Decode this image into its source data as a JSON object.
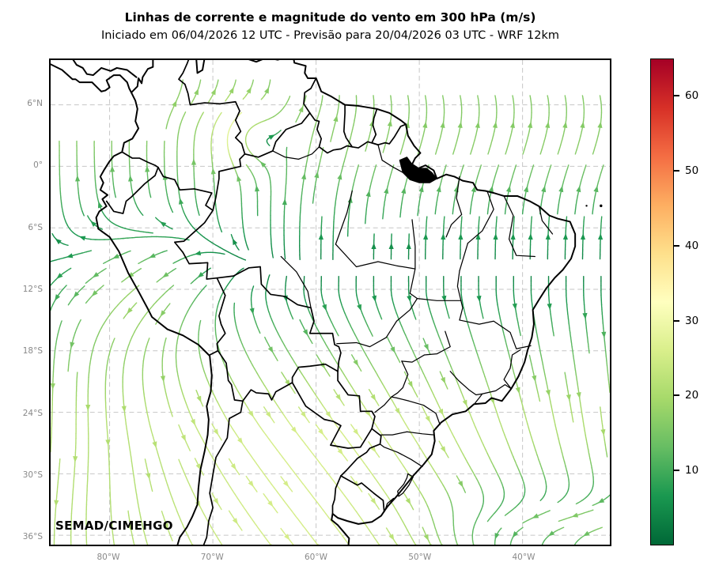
{
  "header": {
    "title": "Linhas de corrente e magnitude do vento em 300 hPa (m/s)",
    "subtitle": "Iniciado em 06/04/2026 12 UTC - Previsão para 20/04/2026 03 UTC - WRF 12km"
  },
  "map": {
    "credit": "SEMAD/CIMEHGO",
    "x_axis": {
      "tick_labels": [
        "80°W",
        "70°W",
        "60°W",
        "50°W",
        "40°W"
      ],
      "tick_lons": [
        -80,
        -70,
        -60,
        -50,
        -40
      ]
    },
    "y_axis": {
      "tick_labels": [
        "6°N",
        "0°",
        "6°S",
        "12°S",
        "18°S",
        "24°S",
        "30°S",
        "36°S"
      ],
      "tick_lats": [
        6,
        0,
        -6,
        -12,
        -18,
        -24,
        -30,
        -36
      ]
    },
    "gridline_style": "dashed"
  },
  "colorbar": {
    "unit": "m/s",
    "vmin": 0,
    "vmax": 65,
    "tick_values": [
      10,
      20,
      30,
      40,
      50,
      60
    ],
    "tick_labels": [
      "10",
      "20",
      "30",
      "40",
      "50",
      "60"
    ],
    "colormap": "RdYlGn_r",
    "anchor_colors": [
      "#006837",
      "#1a9850",
      "#66bd63",
      "#a6d96a",
      "#d9ef8b",
      "#ffffbf",
      "#fee08b",
      "#fdae61",
      "#f46d43",
      "#d73027",
      "#a50026"
    ]
  },
  "chart_data": {
    "type": "streamline_map",
    "title": "Linhas de corrente e magnitude do vento em 300 hPa (m/s)",
    "model_initialized": "06/04/2026 12 UTC",
    "forecast_valid": "20/04/2026 03 UTC",
    "model": "WRF 12km",
    "region": "South America / Brazil",
    "lon_range_deg": [
      -85.7,
      -31.5
    ],
    "lat_range_deg": [
      -37.0,
      10.4
    ],
    "wind_speed_scale_mps": {
      "min": 0,
      "max": 65,
      "ticks": [
        10,
        20,
        30,
        40,
        50,
        60
      ]
    },
    "displayed_speed_range_mps": [
      5,
      32
    ],
    "flow_features": [
      "northward cross-equatorial flow over northern Brazil and the Guianas (10-18 m/s, green streamlines)",
      "diffluence axis with weak winds near 10S-12S",
      "southeastward flow over Bolivia, Paraguay and southern Brazil (20-30 m/s, yellow-green streamlines)",
      "southwestward flow along the Peruvian coast",
      "small anticyclonic hook over central Venezuela",
      "westward flow band near 31S-36S east of 45W (8-14 m/s, darker green)"
    ],
    "gridlines": {
      "lon_labels": [
        "80°W",
        "70°W",
        "60°W",
        "50°W",
        "40°W"
      ],
      "lat_labels": [
        "6°N",
        "0°",
        "6°S",
        "12°S",
        "18°S",
        "24°S",
        "30°S",
        "36°S"
      ],
      "style": "dashed gray"
    },
    "credit_label": "SEMAD/CIMEHGO"
  }
}
